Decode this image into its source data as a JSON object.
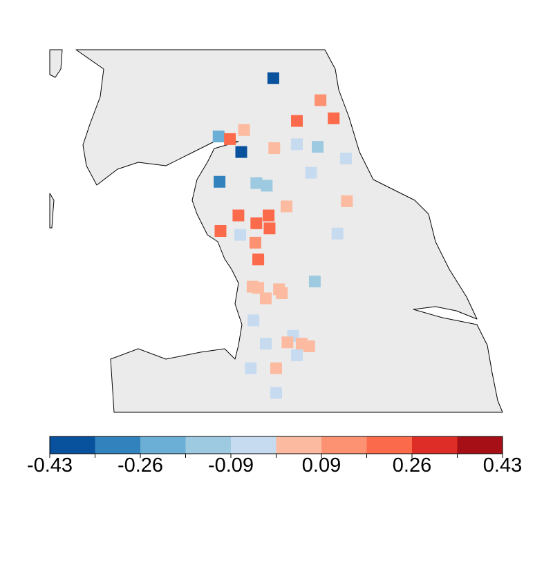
{
  "chart_data": {
    "type": "map",
    "xlim": [
      -4.5,
      0.3
    ],
    "ylim": [
      53.0,
      55.8
    ],
    "points": [
      {
        "lon": -2.13,
        "lat": 55.58,
        "value": -0.39
      },
      {
        "lon": -1.63,
        "lat": 55.41,
        "value": 0.13
      },
      {
        "lon": -1.88,
        "lat": 55.25,
        "value": 0.21
      },
      {
        "lon": -1.49,
        "lat": 55.27,
        "value": 0.21
      },
      {
        "lon": -2.71,
        "lat": 55.13,
        "value": -0.21
      },
      {
        "lon": -2.59,
        "lat": 55.11,
        "value": 0.21
      },
      {
        "lon": -2.44,
        "lat": 55.18,
        "value": 0.04
      },
      {
        "lon": -2.47,
        "lat": 55.01,
        "value": -0.39
      },
      {
        "lon": -2.12,
        "lat": 55.04,
        "value": 0.04
      },
      {
        "lon": -1.88,
        "lat": 55.07,
        "value": -0.04
      },
      {
        "lon": -1.66,
        "lat": 55.05,
        "value": -0.13
      },
      {
        "lon": -1.36,
        "lat": 54.96,
        "value": -0.04
      },
      {
        "lon": -1.73,
        "lat": 54.85,
        "value": -0.04
      },
      {
        "lon": -2.7,
        "lat": 54.78,
        "value": -0.3
      },
      {
        "lon": -2.31,
        "lat": 54.77,
        "value": -0.13
      },
      {
        "lon": -2.2,
        "lat": 54.75,
        "value": -0.13
      },
      {
        "lon": -1.99,
        "lat": 54.59,
        "value": 0.04
      },
      {
        "lon": -1.35,
        "lat": 54.63,
        "value": 0.04
      },
      {
        "lon": -2.5,
        "lat": 54.52,
        "value": 0.21
      },
      {
        "lon": -2.18,
        "lat": 54.52,
        "value": 0.21
      },
      {
        "lon": -2.31,
        "lat": 54.46,
        "value": 0.21
      },
      {
        "lon": -2.17,
        "lat": 54.42,
        "value": 0.21
      },
      {
        "lon": -2.69,
        "lat": 54.4,
        "value": 0.21
      },
      {
        "lon": -2.48,
        "lat": 54.37,
        "value": -0.04
      },
      {
        "lon": -1.45,
        "lat": 54.38,
        "value": -0.04
      },
      {
        "lon": -2.32,
        "lat": 54.31,
        "value": 0.13
      },
      {
        "lon": -2.29,
        "lat": 54.18,
        "value": 0.21
      },
      {
        "lon": -1.69,
        "lat": 54.01,
        "value": -0.13
      },
      {
        "lon": -2.35,
        "lat": 53.97,
        "value": 0.04
      },
      {
        "lon": -2.29,
        "lat": 53.96,
        "value": 0.04
      },
      {
        "lon": -2.07,
        "lat": 53.95,
        "value": 0.04
      },
      {
        "lon": -2.04,
        "lat": 53.92,
        "value": 0.04
      },
      {
        "lon": -2.21,
        "lat": 53.88,
        "value": 0.04
      },
      {
        "lon": -2.34,
        "lat": 53.71,
        "value": -0.04
      },
      {
        "lon": -1.92,
        "lat": 53.59,
        "value": -0.04
      },
      {
        "lon": -2.21,
        "lat": 53.53,
        "value": -0.04
      },
      {
        "lon": -1.98,
        "lat": 53.54,
        "value": 0.04
      },
      {
        "lon": -1.83,
        "lat": 53.53,
        "value": 0.04
      },
      {
        "lon": -1.75,
        "lat": 53.51,
        "value": 0.04
      },
      {
        "lon": -1.88,
        "lat": 53.44,
        "value": -0.04
      },
      {
        "lon": -2.37,
        "lat": 53.34,
        "value": -0.04
      },
      {
        "lon": -2.1,
        "lat": 53.34,
        "value": 0.04
      },
      {
        "lon": -2.1,
        "lat": 53.15,
        "value": -0.04
      }
    ],
    "colorbar": {
      "lim": [
        -0.43,
        0.43
      ],
      "colors": [
        "#08519c",
        "#3182bd",
        "#6baed6",
        "#9ecae1",
        "#c6dbef",
        "#fcbba1",
        "#fc9272",
        "#fb6a4a",
        "#de2d26",
        "#a50f15"
      ],
      "ticks": [
        -0.43,
        {
          "value": -0.258,
          "label": "-0.26"
        },
        {
          "value": -0.086,
          "label": "-0.09"
        },
        {
          "value": 0.086,
          "label": "0.09"
        },
        {
          "value": 0.258,
          "label": "0.26"
        },
        0.43
      ],
      "minor_ticks": [
        -0.344,
        -0.172,
        0,
        0.172,
        0.344
      ]
    }
  }
}
